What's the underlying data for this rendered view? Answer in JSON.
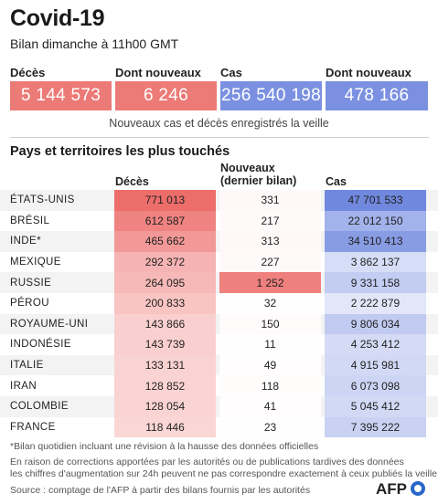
{
  "title": "Covid-19",
  "subtitle": "Bilan dimanche à 11h00 GMT",
  "summary": [
    {
      "label": "Décès",
      "value": "5 144 573",
      "color": "red"
    },
    {
      "label": "Dont nouveaux",
      "value": "6 246",
      "color": "red"
    },
    {
      "label": "Cas",
      "value": "256 540 198",
      "color": "blue"
    },
    {
      "label": "Dont nouveaux",
      "value": "478 166",
      "color": "blue"
    }
  ],
  "summary_note": "Nouveaux cas et décès enregistrés la veille",
  "section_title": "Pays et territoires les plus touchés",
  "colors": {
    "red_high": "#ec6d6a",
    "red_low": "#fdeeed",
    "blue_high": "#7088de",
    "blue_low": "#f1f3fc"
  },
  "chart_data": {
    "type": "table",
    "columns": [
      "Décès",
      "Nouveaux (dernier bilan)",
      "Cas"
    ],
    "column_lines": [
      [
        "Décès"
      ],
      [
        "Nouveaux",
        "(dernier bilan)"
      ],
      [
        "Cas"
      ]
    ],
    "rows": [
      {
        "country": "ÉTATS-UNIS",
        "deaths": 771013,
        "new": 331,
        "cases": 47701533,
        "deaths_t": "771 013",
        "new_t": "331",
        "cases_t": "47 701 533"
      },
      {
        "country": "BRÉSIL",
        "deaths": 612587,
        "new": 217,
        "cases": 22012150,
        "deaths_t": "612 587",
        "new_t": "217",
        "cases_t": "22 012 150"
      },
      {
        "country": "INDE*",
        "deaths": 465662,
        "new": 313,
        "cases": 34510413,
        "deaths_t": "465 662",
        "new_t": "313",
        "cases_t": "34 510 413"
      },
      {
        "country": "MEXIQUE",
        "deaths": 292372,
        "new": 227,
        "cases": 3862137,
        "deaths_t": "292 372",
        "new_t": "227",
        "cases_t": "3 862 137"
      },
      {
        "country": "RUSSIE",
        "deaths": 264095,
        "new": 1252,
        "cases": 9331158,
        "deaths_t": "264 095",
        "new_t": "1 252",
        "cases_t": "9 331 158"
      },
      {
        "country": "PÉROU",
        "deaths": 200833,
        "new": 32,
        "cases": 2222879,
        "deaths_t": "200 833",
        "new_t": "32",
        "cases_t": "2 222 879"
      },
      {
        "country": "ROYAUME-UNI",
        "deaths": 143866,
        "new": 150,
        "cases": 9806034,
        "deaths_t": "143 866",
        "new_t": "150",
        "cases_t": "9 806 034"
      },
      {
        "country": "INDONÉSIE",
        "deaths": 143739,
        "new": 11,
        "cases": 4253412,
        "deaths_t": "143 739",
        "new_t": "11",
        "cases_t": "4 253 412"
      },
      {
        "country": "ITALIE",
        "deaths": 133131,
        "new": 49,
        "cases": 4915981,
        "deaths_t": "133 131",
        "new_t": "49",
        "cases_t": "4 915 981"
      },
      {
        "country": "IRAN",
        "deaths": 128852,
        "new": 118,
        "cases": 6073098,
        "deaths_t": "128 852",
        "new_t": "118",
        "cases_t": "6 073 098"
      },
      {
        "country": "COLOMBIE",
        "deaths": 128054,
        "new": 41,
        "cases": 5045412,
        "deaths_t": "128 054",
        "new_t": "41",
        "cases_t": "5 045 412"
      },
      {
        "country": "FRANCE",
        "deaths": 118446,
        "new": 23,
        "cases": 7395222,
        "deaths_t": "118 446",
        "new_t": "23",
        "cases_t": "7 395 222"
      }
    ]
  },
  "footnotes": [
    "*Bilan quotidien incluant une révision à la hausse des données officielles",
    "En raison de corrections apportées par les autorités ou de publications tardives des données",
    "les chiffres d'augmentation sur 24h peuvent ne pas correspondre exactement à ceux publiés la veille"
  ],
  "source": "Source : comptage de l'AFP à partir des bilans fournis par les autorités",
  "logo_text": "AFP"
}
